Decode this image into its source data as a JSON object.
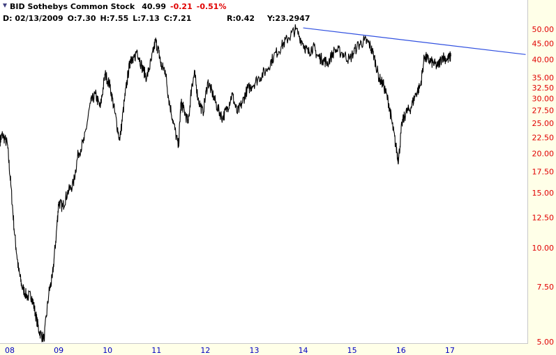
{
  "header": {
    "symbol_name": "BID Sothebys Common Stock",
    "last": "40.99",
    "change": "-0.21",
    "change_pct": "-0.51%"
  },
  "ohlc": {
    "date": "D: 02/13/2009",
    "open": "O:7.30",
    "high": "H:7.55",
    "low": "L:7.13",
    "close": "C:7.21"
  },
  "cursor": {
    "r": "R:0.42",
    "y": "Y:23.2947"
  },
  "colors": {
    "price": "#000000",
    "trendline": "#3050e0",
    "axis_price_labels": "#e00000",
    "axis_year_labels": "#0000c0",
    "frame": "#ffffe8"
  },
  "chart_data": {
    "type": "line",
    "y_scale": "log",
    "ylim": [
      5.0,
      60.0
    ],
    "y_ticks": [
      "50.00",
      "45.00",
      "40.00",
      "35.00",
      "32.50",
      "30.00",
      "27.50",
      "25.00",
      "22.50",
      "20.00",
      "17.50",
      "15.00",
      "12.50",
      "10.00",
      "7.50",
      "5.00"
    ],
    "y_tick_values": [
      50,
      45,
      40,
      35,
      32.5,
      30,
      27.5,
      25,
      22.5,
      20,
      17.5,
      15,
      12.5,
      10,
      7.5,
      5
    ],
    "x_ticks": [
      "08",
      "09",
      "10",
      "11",
      "12",
      "13",
      "14",
      "15",
      "16",
      "17"
    ],
    "x_tick_years": [
      2008.0,
      2009.0,
      2010.0,
      2011.0,
      2012.0,
      2013.0,
      2014.0,
      2015.0,
      2016.0,
      2017.0
    ],
    "xlim": [
      2007.9,
      2018.7
    ],
    "grid": false,
    "series": [
      {
        "x": [
          2007.9,
          2007.95,
          2008.05,
          2008.12,
          2008.2,
          2008.28,
          2008.35,
          2008.45,
          2008.55,
          2008.62,
          2008.7,
          2008.8,
          2008.9,
          2008.97,
          2009.05,
          2009.1,
          2009.18,
          2009.28,
          2009.4,
          2009.5,
          2009.62,
          2009.75,
          2009.85,
          2009.95,
          2010.05,
          2010.15,
          2010.25,
          2010.35,
          2010.45,
          2010.52,
          2010.58,
          2010.62,
          2010.7,
          2010.8,
          2010.9,
          2011.0,
          2011.08,
          2011.15,
          2011.2,
          2011.28,
          2011.35,
          2011.45,
          2011.55,
          2011.6,
          2011.65,
          2011.75,
          2011.82,
          2011.88,
          2011.95,
          2012.05,
          2012.15,
          2012.25,
          2012.35,
          2012.45,
          2012.55,
          2012.65,
          2012.75,
          2012.85,
          2012.95,
          2013.05,
          2013.2,
          2013.35,
          2013.5,
          2013.65,
          2013.8,
          2013.95,
          2014.1,
          2014.2,
          2014.3,
          2014.4,
          2014.5,
          2014.6,
          2014.75,
          2014.9,
          2015.05,
          2015.2,
          2015.35,
          2015.45,
          2015.55,
          2015.65,
          2015.75,
          2015.85,
          2015.92,
          2016.0,
          2016.05,
          2016.12,
          2016.2,
          2016.3,
          2016.4,
          2016.5,
          2016.58,
          2016.65,
          2016.75,
          2016.85,
          2016.95,
          2017.05,
          2017.12
        ],
        "values": [
          22,
          23,
          21.5,
          16,
          11,
          8.5,
          7.5,
          7.0,
          7.0,
          6.2,
          5.4,
          5.1,
          7.2,
          8.0,
          11,
          14,
          13.5,
          15,
          16,
          20,
          22,
          29,
          31,
          28,
          36,
          33,
          27,
          22,
          30,
          36,
          41,
          39,
          43,
          38,
          35,
          40,
          46,
          42,
          38,
          37,
          30,
          25,
          21,
          29,
          28,
          25,
          33,
          36,
          30,
          27,
          34,
          31,
          28,
          26,
          28,
          31,
          27,
          29,
          32,
          33,
          35,
          37,
          41,
          44,
          47,
          50,
          45,
          42,
          44,
          41,
          40,
          39,
          43,
          42,
          40,
          44,
          46,
          45,
          41,
          35,
          33,
          29,
          25,
          21,
          19,
          25,
          27,
          28,
          31,
          33,
          41,
          40,
          39,
          38,
          41,
          40,
          41
        ]
      },
      {
        "x": [
          2014.1,
          2018.65
        ],
        "values": [
          50.5,
          41.5
        ]
      }
    ]
  }
}
